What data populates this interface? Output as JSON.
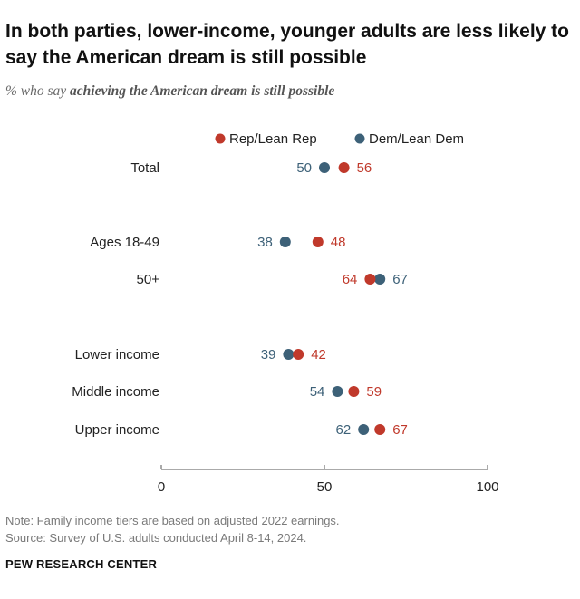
{
  "title": "In both parties, lower-income, younger adults are less likely to say the American dream is still possible",
  "subtitle_prefix": "% who say",
  "subtitle_emphasis": "achieving the American dream is still possible",
  "colors": {
    "rep": "#c0392b",
    "dem": "#3d6178",
    "axis": "#555555"
  },
  "chart_data": {
    "type": "dot",
    "title": "In both parties, lower-income, younger adults are less likely to say the American dream is still possible",
    "xlim": [
      0,
      100
    ],
    "ticks": [
      0,
      50,
      100
    ],
    "tick_labels": [
      "0",
      "50",
      "100"
    ],
    "legend": [
      "Rep/Lean Rep",
      "Dem/Lean Dem"
    ],
    "legend_position": "top",
    "categories": [
      "Total",
      "Ages 18-49",
      "50+",
      "Lower income",
      "Middle income",
      "Upper income"
    ],
    "series": [
      {
        "name": "Rep/Lean Rep",
        "values": [
          56,
          48,
          64,
          42,
          59,
          67
        ]
      },
      {
        "name": "Dem/Lean Dem",
        "values": [
          50,
          38,
          67,
          39,
          54,
          62
        ]
      }
    ]
  },
  "note": "Note: Family income tiers are based on adjusted 2022 earnings.",
  "source": "Source: Survey of U.S. adults conducted April 8-14, 2024.",
  "org": "PEW RESEARCH CENTER"
}
